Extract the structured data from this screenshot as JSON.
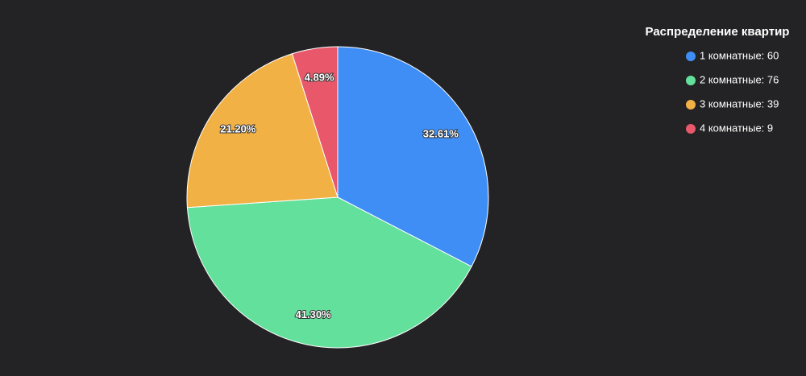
{
  "chart_data": {
    "type": "pie",
    "legend_title": "Распределение квартир",
    "categories": [
      "1 комнатные: 60",
      "2 комнатные: 76",
      "3 комнатные: 39",
      "4 комнатные: 9"
    ],
    "values": [
      60,
      76,
      39,
      9
    ],
    "value_labels": [
      "32.61%",
      "41.30%",
      "21.20%",
      "4.89%"
    ],
    "colors": [
      "#3f8ef5",
      "#63e09b",
      "#f2b144",
      "#e8586a"
    ],
    "legend": "top-right"
  }
}
